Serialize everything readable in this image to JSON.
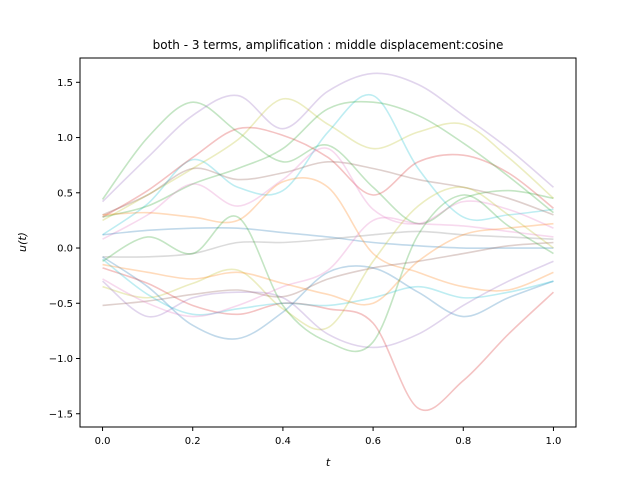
{
  "chart_data": {
    "type": "line",
    "title": "both - 3 terms, amplification : middle displacement:cosine",
    "xlabel": "t",
    "ylabel": "u(t)",
    "xlim": [
      -0.05,
      1.05
    ],
    "ylim": [
      -1.62,
      1.72
    ],
    "xticks": [
      0.0,
      0.2,
      0.4,
      0.6,
      0.8,
      1.0
    ],
    "xtick_labels": [
      "0.0",
      "0.2",
      "0.4",
      "0.6",
      "0.8",
      "1.0"
    ],
    "yticks": [
      -1.5,
      -1.0,
      -0.5,
      0.0,
      0.5,
      1.0,
      1.5
    ],
    "ytick_labels": [
      "−1.5",
      "−1.0",
      "−0.5",
      "0.0",
      "0.5",
      "1.0",
      "1.5"
    ],
    "grid": false,
    "legend": "none",
    "line_alpha": 0.28,
    "x": [
      0.0,
      0.1,
      0.2,
      0.3,
      0.4,
      0.5,
      0.6,
      0.7,
      0.8,
      0.9,
      1.0
    ],
    "series": [
      {
        "color": "#2ca02c",
        "values": [
          0.44,
          1.0,
          1.32,
          1.05,
          0.78,
          0.93,
          0.55,
          0.22,
          0.45,
          0.52,
          0.45
        ]
      },
      {
        "color": "#9467bd",
        "values": [
          0.42,
          0.82,
          1.2,
          1.38,
          1.08,
          1.42,
          1.58,
          1.48,
          1.2,
          0.9,
          0.55
        ]
      },
      {
        "color": "#bcbd22",
        "values": [
          0.25,
          0.48,
          0.72,
          0.98,
          1.35,
          1.12,
          0.9,
          1.05,
          1.12,
          0.82,
          0.45
        ]
      },
      {
        "color": "#17becf",
        "values": [
          0.12,
          0.4,
          0.8,
          0.55,
          0.52,
          1.05,
          1.38,
          0.72,
          0.28,
          0.3,
          0.35
        ]
      },
      {
        "color": "#d62728",
        "values": [
          0.28,
          0.52,
          0.82,
          1.08,
          1.02,
          0.82,
          0.48,
          0.78,
          0.84,
          0.68,
          0.36
        ]
      },
      {
        "color": "#2ca02c",
        "values": [
          0.28,
          0.38,
          0.58,
          0.72,
          0.9,
          1.26,
          1.32,
          1.2,
          0.95,
          0.65,
          0.32
        ]
      },
      {
        "color": "#8c564b",
        "values": [
          0.3,
          0.48,
          0.72,
          0.62,
          0.68,
          0.78,
          0.72,
          0.62,
          0.55,
          0.45,
          0.3
        ]
      },
      {
        "color": "#e377c2",
        "values": [
          0.08,
          0.3,
          0.58,
          0.38,
          0.62,
          0.9,
          0.35,
          0.22,
          0.42,
          0.35,
          0.18
        ]
      },
      {
        "color": "#1f77b4",
        "values": [
          0.12,
          0.16,
          0.18,
          0.18,
          0.14,
          0.1,
          0.05,
          0.02,
          0.0,
          0.0,
          0.0
        ]
      },
      {
        "color": "#ff7f0e",
        "values": [
          0.3,
          0.32,
          0.28,
          0.25,
          0.6,
          0.55,
          -0.05,
          -0.22,
          -0.35,
          -0.38,
          -0.22
        ]
      },
      {
        "color": "#7f7f7f",
        "values": [
          -0.08,
          -0.08,
          -0.05,
          0.05,
          0.05,
          0.08,
          0.12,
          0.15,
          0.12,
          0.1,
          0.08
        ]
      },
      {
        "color": "#bcbd22",
        "values": [
          -0.35,
          -0.45,
          -0.32,
          -0.2,
          -0.55,
          -0.72,
          -0.12,
          0.38,
          0.55,
          0.3,
          0.0
        ]
      },
      {
        "color": "#1f77b4",
        "values": [
          -0.08,
          -0.35,
          -0.7,
          -0.82,
          -0.58,
          -0.22,
          -0.18,
          -0.4,
          -0.62,
          -0.45,
          -0.3
        ]
      },
      {
        "color": "#9467bd",
        "values": [
          -0.3,
          -0.62,
          -0.45,
          -0.4,
          -0.45,
          -0.78,
          -0.9,
          -0.78,
          -0.52,
          -0.3,
          -0.12
        ]
      },
      {
        "color": "#8c564b",
        "values": [
          -0.52,
          -0.48,
          -0.42,
          -0.38,
          -0.44,
          -0.28,
          -0.18,
          -0.12,
          -0.05,
          0.02,
          0.05
        ]
      },
      {
        "color": "#d62728",
        "values": [
          -0.18,
          -0.32,
          -0.52,
          -0.6,
          -0.5,
          -0.55,
          -0.68,
          -1.45,
          -1.2,
          -0.78,
          -0.4
        ]
      },
      {
        "color": "#2ca02c",
        "values": [
          -0.12,
          0.1,
          -0.05,
          0.28,
          -0.52,
          -0.85,
          -0.85,
          0.12,
          0.48,
          0.2,
          -0.05
        ]
      },
      {
        "color": "#17becf",
        "values": [
          -0.1,
          -0.42,
          -0.6,
          -0.55,
          -0.5,
          -0.52,
          -0.45,
          -0.35,
          -0.45,
          -0.4,
          -0.3
        ]
      },
      {
        "color": "#e377c2",
        "values": [
          -0.28,
          -0.5,
          -0.62,
          -0.52,
          -0.35,
          -0.2,
          0.25,
          0.22,
          0.2,
          0.15,
          0.1
        ]
      },
      {
        "color": "#ff7f0e",
        "values": [
          -0.15,
          -0.22,
          -0.28,
          -0.22,
          -0.32,
          -0.42,
          -0.5,
          -0.12,
          0.12,
          0.18,
          0.22
        ]
      }
    ]
  }
}
